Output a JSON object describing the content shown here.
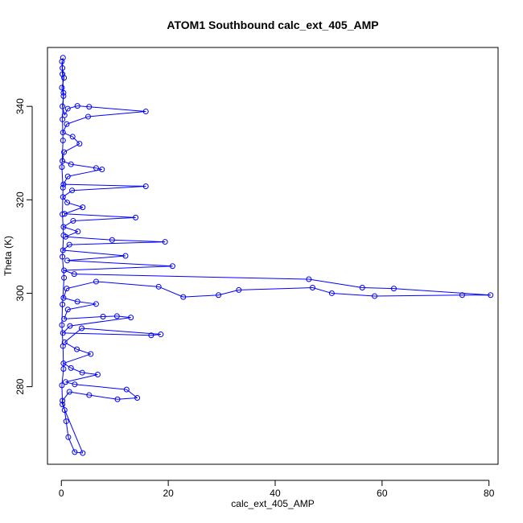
{
  "chart_data": {
    "type": "line",
    "title": "ATOM1 Southbound calc_ext_405_AMP",
    "xlabel": "calc_ext_405_AMP",
    "ylabel": "Theta (K)",
    "xlim": [
      -2.6,
      81.7
    ],
    "ylim": [
      263.4,
      352.6
    ],
    "xticks": [
      0,
      20,
      40,
      60,
      80
    ],
    "yticks": [
      280,
      300,
      320,
      340
    ],
    "grid": false,
    "legend": "none",
    "marker": "open-circle",
    "color": "#0000ff",
    "series": [
      {
        "points": [
          [
            0.3,
            350.4
          ],
          [
            0.2,
            348.2
          ],
          [
            0.5,
            346.1
          ],
          [
            0.1,
            344.0
          ],
          [
            0.4,
            342.2
          ],
          [
            0.2,
            340.0
          ],
          [
            0.6,
            338.1
          ],
          [
            1.2,
            339.5
          ],
          [
            3.0,
            340.1
          ],
          [
            5.2,
            339.9
          ],
          [
            15.8,
            338.9
          ],
          [
            5.0,
            337.8
          ],
          [
            1.0,
            336.2
          ],
          [
            0.3,
            334.4
          ],
          [
            2.1,
            333.5
          ],
          [
            3.4,
            332.0
          ],
          [
            0.5,
            330.2
          ],
          [
            0.2,
            328.3
          ],
          [
            1.8,
            327.6
          ],
          [
            6.5,
            326.8
          ],
          [
            7.6,
            326.5
          ],
          [
            1.2,
            325.0
          ],
          [
            0.4,
            323.3
          ],
          [
            15.8,
            322.9
          ],
          [
            2.0,
            322.0
          ],
          [
            0.3,
            320.6
          ],
          [
            1.1,
            319.4
          ],
          [
            4.0,
            318.4
          ],
          [
            0.6,
            317.0
          ],
          [
            13.9,
            316.2
          ],
          [
            2.2,
            315.5
          ],
          [
            0.4,
            314.2
          ],
          [
            3.1,
            313.2
          ],
          [
            0.8,
            312.1
          ],
          [
            9.5,
            311.4
          ],
          [
            19.4,
            311.0
          ],
          [
            1.5,
            310.4
          ],
          [
            0.3,
            309.2
          ],
          [
            12.0,
            308.0
          ],
          [
            1.1,
            307.0
          ],
          [
            20.8,
            305.8
          ],
          [
            0.5,
            304.9
          ],
          [
            2.4,
            304.1
          ],
          [
            46.3,
            303.0
          ],
          [
            56.3,
            301.2
          ],
          [
            62.2,
            301.0
          ],
          [
            80.3,
            299.6
          ],
          [
            75.0,
            299.6
          ],
          [
            58.6,
            299.4
          ],
          [
            50.6,
            300.0
          ],
          [
            47.0,
            301.2
          ],
          [
            33.2,
            300.7
          ],
          [
            29.4,
            299.6
          ],
          [
            22.8,
            299.2
          ],
          [
            18.2,
            301.4
          ],
          [
            6.5,
            302.5
          ],
          [
            1.0,
            301.0
          ],
          [
            0.4,
            299.0
          ],
          [
            3.0,
            298.2
          ],
          [
            6.5,
            297.7
          ],
          [
            1.2,
            296.5
          ],
          [
            0.5,
            294.5
          ],
          [
            7.8,
            295.0
          ],
          [
            10.4,
            295.1
          ],
          [
            13.0,
            294.8
          ],
          [
            1.6,
            293.0
          ],
          [
            0.3,
            291.5
          ],
          [
            16.8,
            291.0
          ],
          [
            18.6,
            291.2
          ],
          [
            3.8,
            292.5
          ],
          [
            0.6,
            289.5
          ],
          [
            2.9,
            288.0
          ],
          [
            5.5,
            287.0
          ],
          [
            0.4,
            285.0
          ],
          [
            1.8,
            284.0
          ],
          [
            3.9,
            283.0
          ],
          [
            6.8,
            282.6
          ],
          [
            0.8,
            281.0
          ],
          [
            2.5,
            280.5
          ],
          [
            12.2,
            279.4
          ],
          [
            14.2,
            277.6
          ],
          [
            10.5,
            277.3
          ],
          [
            5.2,
            278.2
          ],
          [
            1.5,
            278.9
          ],
          [
            0.2,
            277.0
          ],
          [
            0.6,
            275.0
          ],
          [
            0.9,
            272.6
          ],
          [
            1.3,
            269.2
          ],
          [
            2.5,
            266.0
          ],
          [
            4.0,
            265.8
          ],
          [
            0.2,
            276.2
          ],
          [
            0.1,
            280.3
          ],
          [
            0.4,
            283.8
          ],
          [
            0.3,
            288.7
          ],
          [
            0.1,
            293.2
          ],
          [
            0.2,
            297.6
          ],
          [
            0.5,
            303.3
          ],
          [
            0.2,
            307.8
          ],
          [
            0.4,
            312.4
          ],
          [
            0.2,
            316.9
          ],
          [
            0.3,
            322.6
          ],
          [
            0.1,
            327.0
          ],
          [
            0.3,
            332.7
          ],
          [
            0.2,
            337.2
          ],
          [
            0.4,
            342.9
          ],
          [
            0.2,
            346.9
          ],
          [
            0.1,
            349.6
          ]
        ]
      }
    ]
  }
}
